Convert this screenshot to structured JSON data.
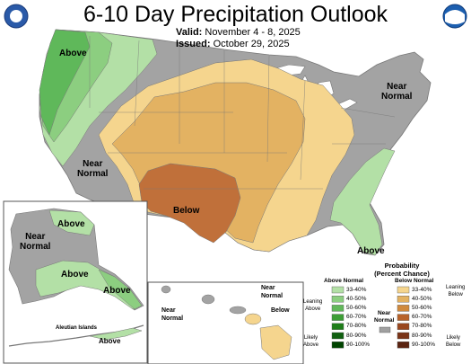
{
  "title": "6-10 Day Precipitation Outlook",
  "valid": {
    "label": "Valid:",
    "value": "November 4 - 8, 2025"
  },
  "issued": {
    "label": "Issued:",
    "value": "October 29, 2025"
  },
  "logos": {
    "left": "doc-seal-icon",
    "right": "noaa-logo-icon"
  },
  "map_labels": {
    "above_northwest": "Above",
    "near_normal_west": "Near\nNormal",
    "near_normal_northeast": "Near\nNormal",
    "below_south": "Below",
    "above_southeast": "Above",
    "alaska_above_north": "Above",
    "alaska_near_normal": "Near\nNormal",
    "alaska_above_central": "Above",
    "alaska_above_panhandle": "Above",
    "aleutian_islands": "Aleutian Islands",
    "aleutian_above": "Above",
    "hawaii_near_normal_left": "Near\nNormal",
    "hawaii_near_normal_top": "Near\nNormal",
    "hawaii_below": "Below"
  },
  "legend": {
    "title": "Probability\n(Percent Chance)",
    "above_header": "Above Normal",
    "below_header": "Below Normal",
    "near_header": "Near\nNormal",
    "leaning_above": "Leaning\nAbove",
    "likely_above": "Likely\nAbove",
    "leaning_below": "Leaning\nBelow",
    "likely_below": "Likely\nBelow",
    "ranges": [
      "33-40%",
      "40-50%",
      "50-60%",
      "60-70%",
      "70-80%",
      "80-90%",
      "90-100%"
    ],
    "above_colors": [
      "#b3e0a6",
      "#8cce80",
      "#62b85a",
      "#3d9e35",
      "#1f7d1a",
      "#106010",
      "#004400"
    ],
    "below_colors": [
      "#f5d58e",
      "#e3b262",
      "#d08a3e",
      "#b8632a",
      "#99471f",
      "#7a3417",
      "#5a2310"
    ],
    "near_color": "#a0a0a0"
  }
}
